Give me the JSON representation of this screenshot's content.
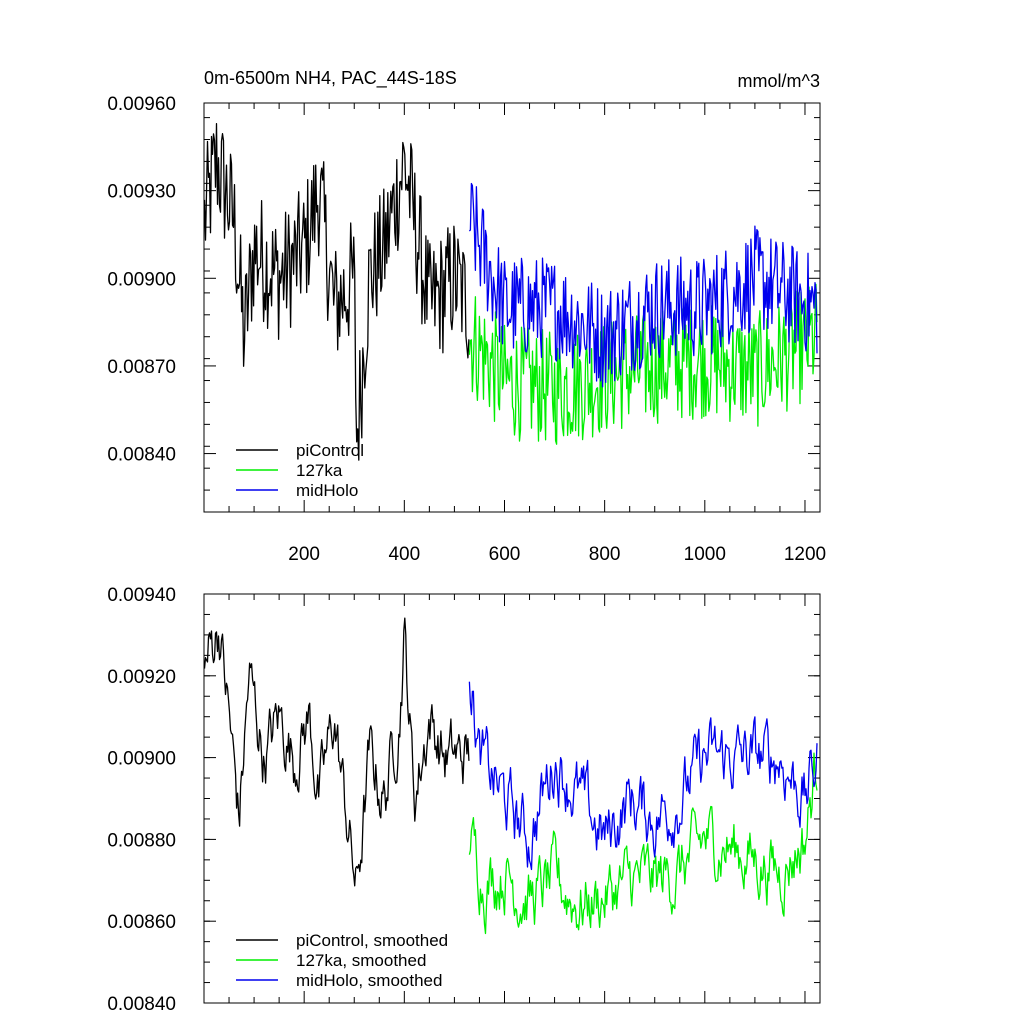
{
  "chart_data": [
    {
      "type": "line",
      "title": "0m-6500m NH4, PAC_44S-18S",
      "units": "mmol/m^3",
      "xlim": [
        0,
        1230
      ],
      "ylim": [
        0.0082,
        0.0096
      ],
      "y_ticks": [
        0.0084,
        0.0087,
        0.009,
        0.0093,
        0.0096
      ],
      "y_tick_labels": [
        "0.00840",
        "0.00870",
        "0.00900",
        "0.00930",
        "0.00960"
      ],
      "x_ticks": [
        200,
        400,
        600,
        800,
        1000,
        1200
      ],
      "x_tick_labels": [
        "200",
        "400",
        "600",
        "800",
        "1000",
        "1200"
      ],
      "legend": "bottom-left",
      "series": [
        {
          "name": "piControl",
          "color": "#000000",
          "x_range": [
            1,
            530
          ],
          "mean": 0.00905,
          "amp": 0.00022,
          "points": [
            [
              1,
              0.0092
            ],
            [
              25,
              0.0094
            ],
            [
              60,
              0.0092
            ],
            [
              80,
              0.0088
            ],
            [
              100,
              0.0091
            ],
            [
              150,
              0.009
            ],
            [
              200,
              0.0091
            ],
            [
              230,
              0.0093
            ],
            [
              260,
              0.0089
            ],
            [
              300,
              0.009
            ],
            [
              305,
              0.00845
            ],
            [
              330,
              0.009
            ],
            [
              360,
              0.0091
            ],
            [
              400,
              0.0094
            ],
            [
              450,
              0.0089
            ],
            [
              500,
              0.009
            ],
            [
              530,
              0.0089
            ]
          ]
        },
        {
          "name": "127ka",
          "color": "#00ee00",
          "x_range": [
            530,
            1225
          ],
          "mean": 0.00868,
          "amp": 0.0002,
          "points": [
            [
              530,
              0.0088
            ],
            [
              600,
              0.00865
            ],
            [
              700,
              0.00862
            ],
            [
              800,
              0.00866
            ],
            [
              900,
              0.0087
            ],
            [
              1000,
              0.00872
            ],
            [
              1100,
              0.00868
            ],
            [
              1225,
              0.0088
            ]
          ]
        },
        {
          "name": "midHolo",
          "color": "#0000ee",
          "x_range": [
            530,
            1225
          ],
          "mean": 0.00889,
          "amp": 0.00018,
          "points": [
            [
              530,
              0.0092
            ],
            [
              600,
              0.0089
            ],
            [
              700,
              0.0089
            ],
            [
              800,
              0.0088
            ],
            [
              900,
              0.0089
            ],
            [
              1000,
              0.0089
            ],
            [
              1100,
              0.009
            ],
            [
              1225,
              0.0089
            ]
          ]
        }
      ]
    },
    {
      "type": "line",
      "xlim": [
        0,
        1230
      ],
      "ylim": [
        0.0084,
        0.0094
      ],
      "y_ticks": [
        0.0084,
        0.0086,
        0.0088,
        0.009,
        0.0092,
        0.0094
      ],
      "y_tick_labels": [
        "0.00840",
        "0.00860",
        "0.00880",
        "0.00900",
        "0.00920",
        "0.00940"
      ],
      "legend": "bottom-left",
      "series": [
        {
          "name": "piControl, smoothed",
          "color": "#000000",
          "x_range": [
            1,
            530
          ],
          "points": [
            [
              1,
              0.0092
            ],
            [
              10,
              0.00925
            ],
            [
              30,
              0.00933
            ],
            [
              50,
              0.0091
            ],
            [
              70,
              0.00885
            ],
            [
              90,
              0.0092
            ],
            [
              120,
              0.009
            ],
            [
              150,
              0.0091
            ],
            [
              180,
              0.009
            ],
            [
              210,
              0.0091
            ],
            [
              230,
              0.0089
            ],
            [
              260,
              0.0091
            ],
            [
              280,
              0.0089
            ],
            [
              305,
              0.00867
            ],
            [
              330,
              0.009
            ],
            [
              360,
              0.0089
            ],
            [
              390,
              0.0091
            ],
            [
              400,
              0.00931
            ],
            [
              420,
              0.0089
            ],
            [
              450,
              0.0091
            ],
            [
              480,
              0.009
            ],
            [
              500,
              0.009
            ],
            [
              530,
              0.009
            ]
          ]
        },
        {
          "name": "127ka, smoothed",
          "color": "#00ee00",
          "x_range": [
            530,
            1225
          ],
          "points": [
            [
              530,
              0.0088
            ],
            [
              560,
              0.0087
            ],
            [
              600,
              0.00872
            ],
            [
              650,
              0.00865
            ],
            [
              700,
              0.0087
            ],
            [
              750,
              0.00864
            ],
            [
              800,
              0.00866
            ],
            [
              850,
              0.0087
            ],
            [
              900,
              0.0087
            ],
            [
              950,
              0.00872
            ],
            [
              1000,
              0.0088
            ],
            [
              1050,
              0.00878
            ],
            [
              1100,
              0.00875
            ],
            [
              1150,
              0.00872
            ],
            [
              1200,
              0.0088
            ],
            [
              1225,
              0.009
            ]
          ]
        },
        {
          "name": "midHolo, smoothed",
          "color": "#0000ee",
          "x_range": [
            530,
            1225
          ],
          "points": [
            [
              530,
              0.00923
            ],
            [
              550,
              0.009
            ],
            [
              600,
              0.0089
            ],
            [
              650,
              0.0088
            ],
            [
              700,
              0.009
            ],
            [
              750,
              0.0089
            ],
            [
              800,
              0.0088
            ],
            [
              850,
              0.0089
            ],
            [
              900,
              0.00885
            ],
            [
              950,
              0.0089
            ],
            [
              1000,
              0.009
            ],
            [
              1050,
              0.009
            ],
            [
              1100,
              0.009
            ],
            [
              1150,
              0.009
            ],
            [
              1200,
              0.0089
            ],
            [
              1225,
              0.009
            ]
          ]
        }
      ]
    }
  ]
}
